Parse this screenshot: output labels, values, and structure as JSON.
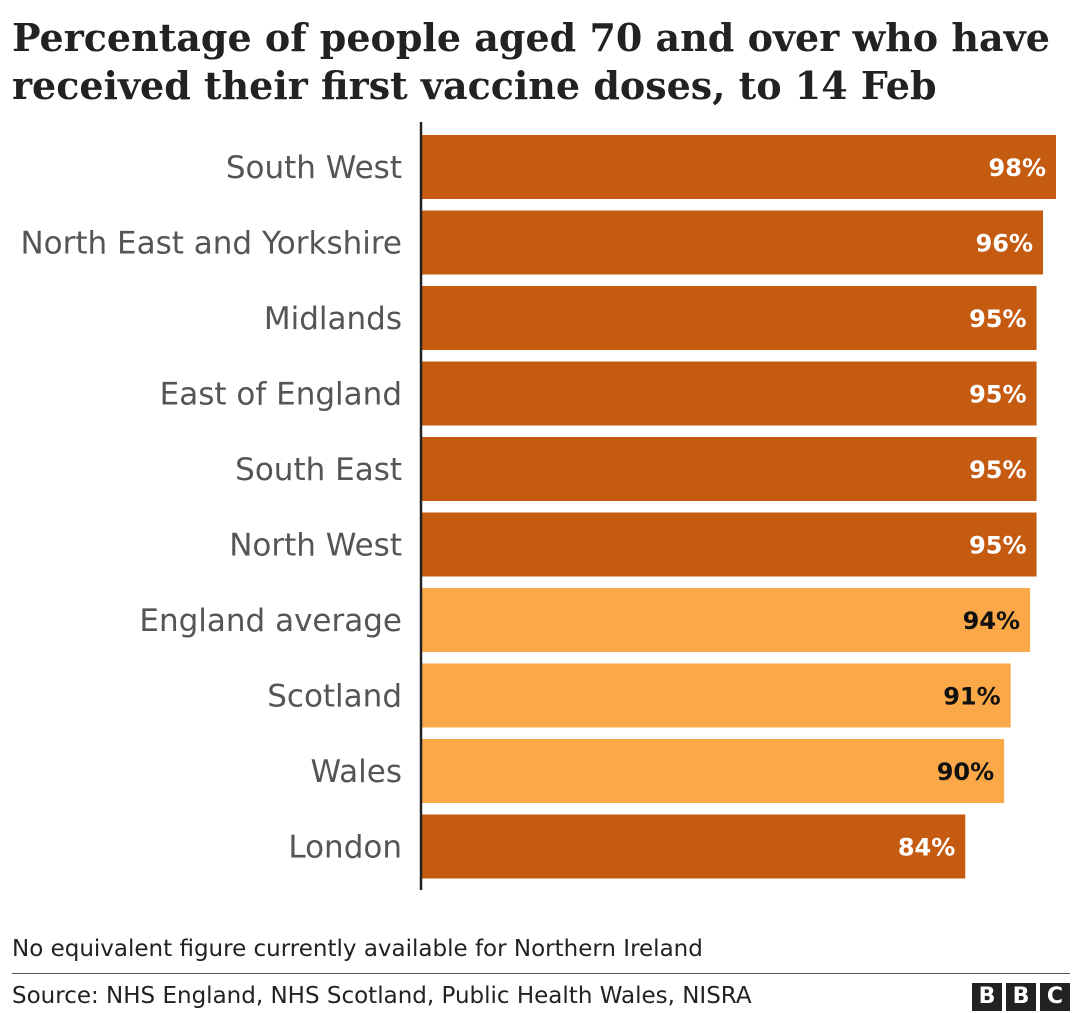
{
  "chart_data": {
    "type": "bar",
    "orientation": "horizontal",
    "title": "Percentage of people aged 70 and over who have received their first vaccine doses, to 14 Feb",
    "categories": [
      "South West",
      "North East and Yorkshire",
      "Midlands",
      "East of England",
      "South East",
      "North West",
      "England average",
      "Scotland",
      "Wales",
      "London"
    ],
    "values": [
      98,
      96,
      95,
      95,
      95,
      95,
      94,
      91,
      90,
      84
    ],
    "value_labels": [
      "98%",
      "96%",
      "95%",
      "95%",
      "95%",
      "95%",
      "94%",
      "91%",
      "90%",
      "84%"
    ],
    "highlight": [
      false,
      false,
      false,
      false,
      false,
      false,
      true,
      true,
      true,
      false
    ],
    "xlim": [
      0,
      98
    ],
    "unit": "%",
    "colors": {
      "region": "#c55a11",
      "highlight": "#faa848",
      "region_label": "#ffffff",
      "highlight_label": "#111111",
      "axis": "#222222",
      "category_text": "#555555"
    }
  },
  "footer": {
    "note": "No equivalent figure currently available for Northern Ireland",
    "source": "Source: NHS England, NHS Scotland, Public Health Wales, NISRA"
  },
  "logo": {
    "letters": [
      "B",
      "B",
      "C"
    ]
  }
}
